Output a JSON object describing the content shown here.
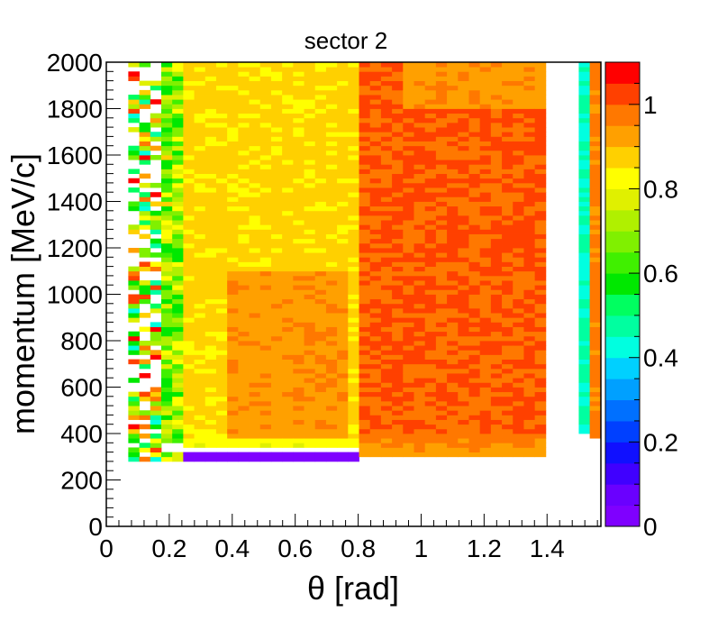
{
  "chart_data": {
    "type": "heatmap",
    "title": "sector 2",
    "xlabel": "θ [rad]",
    "ylabel": "momentum [MeV/c]",
    "xlim": [
      0,
      1.571
    ],
    "ylim": [
      0,
      2000
    ],
    "zlim": [
      0,
      1.1
    ],
    "x_ticks": [
      "0",
      "0.2",
      "0.4",
      "0.6",
      "0.8",
      "1",
      "1.2",
      "1.4"
    ],
    "y_ticks": [
      "0",
      "200",
      "400",
      "600",
      "800",
      "1000",
      "1200",
      "1400",
      "1600",
      "1800",
      "2000"
    ],
    "z_ticks": [
      "0",
      "0.2",
      "0.4",
      "0.6",
      "0.8",
      "1"
    ],
    "x_bin_width": 0.0349,
    "y_bin_width": 20,
    "palette": [
      "#7f00ff",
      "#6a00ff",
      "#4000ff",
      "#1010ff",
      "#0040ff",
      "#0070ff",
      "#00a0ff",
      "#00d0ff",
      "#00ffe0",
      "#00ffa0",
      "#00ff60",
      "#00e800",
      "#40f000",
      "#80f000",
      "#b0f000",
      "#e0f000",
      "#ffff00",
      "#ffd000",
      "#ffa000",
      "#ff7800",
      "#ff4000",
      "#ff0000"
    ],
    "regions": [
      {
        "note": "yellow band",
        "x": [
          0.24,
          0.79
        ],
        "y": [
          340,
          2000
        ],
        "z": 0.86
      },
      {
        "note": "orange pocket",
        "x": [
          0.38,
          0.78
        ],
        "y": [
          390,
          1100
        ],
        "z": 0.94
      },
      {
        "note": "orange plateau",
        "x": [
          0.79,
          1.4
        ],
        "y": [
          300,
          2000
        ],
        "z": 1.0
      },
      {
        "note": "lighter orange top",
        "x": [
          0.94,
          1.38
        ],
        "y": [
          1800,
          2000
        ],
        "z": 0.94
      },
      {
        "note": "greenish strip",
        "x": [
          0.19,
          0.24
        ],
        "y": [
          360,
          2000
        ],
        "z": 0.72
      },
      {
        "note": "cyan column",
        "x": [
          1.5,
          1.53
        ],
        "y": [
          400,
          2000
        ],
        "z": 0.45
      },
      {
        "note": "edge column",
        "x": [
          1.53,
          1.57
        ],
        "y": [
          380,
          2000
        ],
        "z": 0.96
      },
      {
        "note": "violet threshold row",
        "x": [
          0.17,
          0.8
        ],
        "y": [
          280,
          320
        ],
        "z": 0.08
      }
    ]
  }
}
